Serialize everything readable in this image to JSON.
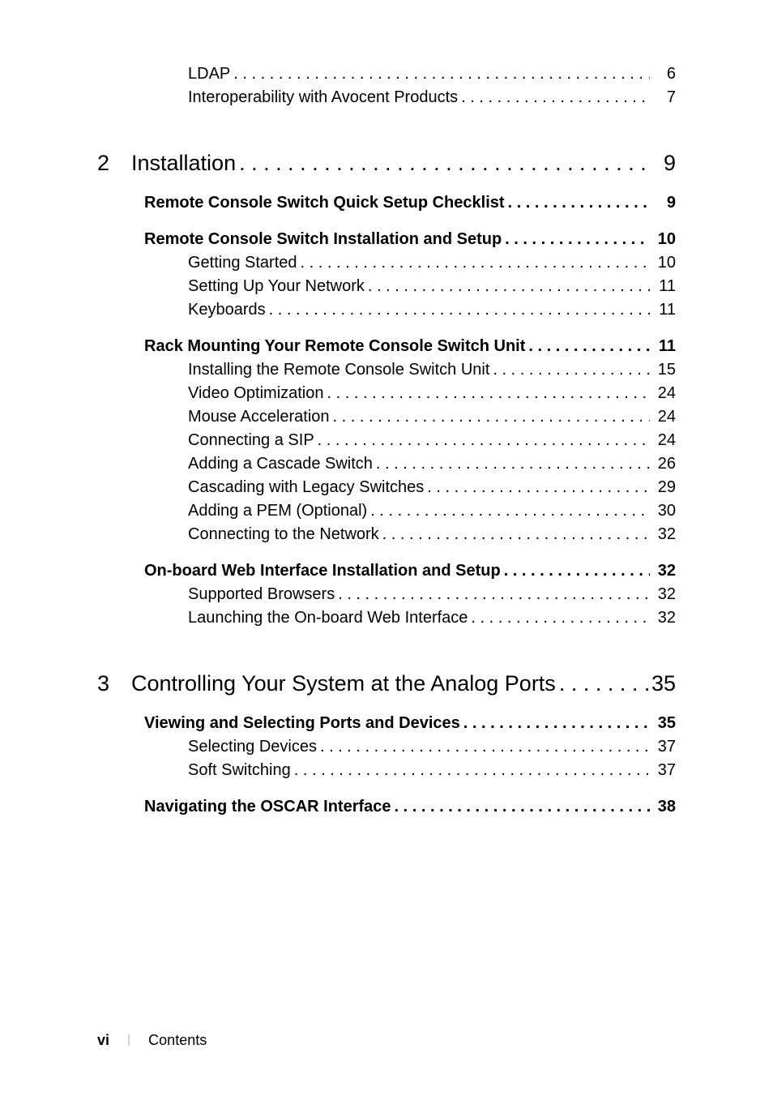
{
  "orphan_subs": [
    {
      "label": "LDAP",
      "page": "6"
    },
    {
      "label": "Interoperability with Avocent Products",
      "page": "7"
    }
  ],
  "chapters": [
    {
      "num": "2",
      "title": "Installation",
      "page": "9",
      "sections": [
        {
          "title": "Remote Console Switch Quick Setup Checklist",
          "page": "9",
          "subs": []
        },
        {
          "title": "Remote Console Switch Installation and Setup",
          "page": "10",
          "subs": [
            {
              "label": "Getting Started",
              "page": "10"
            },
            {
              "label": "Setting Up Your Network",
              "page": "11"
            },
            {
              "label": "Keyboards",
              "page": "11"
            }
          ]
        },
        {
          "title": "Rack Mounting Your Remote Console Switch Unit",
          "page": "11",
          "subs": [
            {
              "label": "Installing the Remote Console Switch Unit",
              "page": "15"
            },
            {
              "label": "Video Optimization",
              "page": "24"
            },
            {
              "label": "Mouse Acceleration",
              "page": "24"
            },
            {
              "label": "Connecting a SIP",
              "page": "24"
            },
            {
              "label": "Adding a Cascade Switch",
              "page": "26"
            },
            {
              "label": "Cascading with Legacy Switches",
              "page": "29"
            },
            {
              "label": "Adding a PEM (Optional)",
              "page": "30"
            },
            {
              "label": "Connecting to the Network",
              "page": "32"
            }
          ]
        },
        {
          "title": "On-board Web Interface Installation and Setup",
          "page": "32",
          "subs": [
            {
              "label": "Supported Browsers",
              "page": "32"
            },
            {
              "label": "Launching the On-board Web Interface",
              "page": "32"
            }
          ]
        }
      ]
    },
    {
      "num": "3",
      "title": "Controlling Your System at the Analog Ports",
      "page": "35",
      "sections": [
        {
          "title": "Viewing and Selecting Ports and Devices",
          "page": "35",
          "subs": [
            {
              "label": "Selecting Devices",
              "page": "37"
            },
            {
              "label": "Soft Switching",
              "page": "37"
            }
          ]
        },
        {
          "title": "Navigating the OSCAR Interface",
          "page": "38",
          "subs": []
        }
      ]
    }
  ],
  "footer": {
    "page_num": "vi",
    "label": "Contents"
  }
}
